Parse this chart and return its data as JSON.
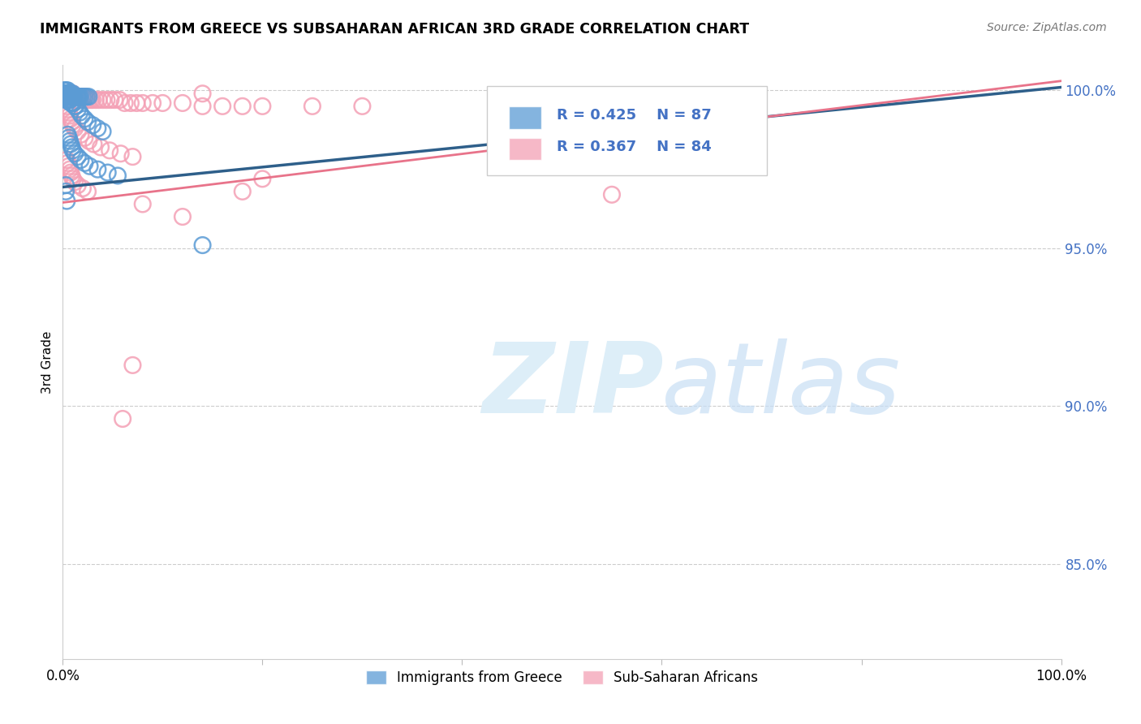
{
  "title": "IMMIGRANTS FROM GREECE VS SUBSAHARAN AFRICAN 3RD GRADE CORRELATION CHART",
  "source": "Source: ZipAtlas.com",
  "ylabel": "3rd Grade",
  "y_ticks": [
    0.85,
    0.9,
    0.95,
    1.0
  ],
  "y_tick_labels": [
    "85.0%",
    "90.0%",
    "95.0%",
    "100.0%"
  ],
  "legend_r_blue": "R = 0.425",
  "legend_n_blue": "N = 87",
  "legend_r_pink": "R = 0.367",
  "legend_n_pink": "N = 84",
  "legend_label_blue": "Immigrants from Greece",
  "legend_label_pink": "Sub-Saharan Africans",
  "blue_color": "#5b9bd5",
  "pink_color": "#f4a0b5",
  "blue_line_color": "#2e5f8a",
  "pink_line_color": "#e8738a",
  "watermark_color": "#ddeef8",
  "blue_x": [
    0.001,
    0.001,
    0.002,
    0.002,
    0.002,
    0.002,
    0.003,
    0.003,
    0.003,
    0.003,
    0.003,
    0.004,
    0.004,
    0.004,
    0.004,
    0.004,
    0.005,
    0.005,
    0.005,
    0.005,
    0.005,
    0.006,
    0.006,
    0.006,
    0.006,
    0.007,
    0.007,
    0.007,
    0.008,
    0.008,
    0.008,
    0.009,
    0.009,
    0.01,
    0.01,
    0.01,
    0.011,
    0.011,
    0.012,
    0.013,
    0.014,
    0.015,
    0.015,
    0.016,
    0.017,
    0.018,
    0.02,
    0.022,
    0.024,
    0.026,
    0.003,
    0.004,
    0.005,
    0.006,
    0.007,
    0.008,
    0.009,
    0.01,
    0.011,
    0.012,
    0.013,
    0.015,
    0.017,
    0.019,
    0.022,
    0.025,
    0.03,
    0.035,
    0.04,
    0.005,
    0.006,
    0.007,
    0.008,
    0.009,
    0.01,
    0.012,
    0.015,
    0.018,
    0.022,
    0.027,
    0.035,
    0.045,
    0.055,
    0.003,
    0.003,
    0.004,
    0.14
  ],
  "blue_y": [
    1.0,
    0.999,
    1.0,
    0.999,
    0.999,
    0.998,
    1.0,
    0.999,
    0.999,
    0.998,
    0.998,
    1.0,
    0.999,
    0.999,
    0.998,
    0.998,
    1.0,
    0.999,
    0.999,
    0.998,
    0.998,
    0.999,
    0.999,
    0.998,
    0.998,
    0.999,
    0.998,
    0.998,
    0.999,
    0.998,
    0.998,
    0.999,
    0.998,
    0.999,
    0.998,
    0.998,
    0.998,
    0.998,
    0.998,
    0.998,
    0.998,
    0.998,
    0.998,
    0.998,
    0.998,
    0.998,
    0.998,
    0.998,
    0.998,
    0.998,
    0.997,
    0.997,
    0.997,
    0.997,
    0.997,
    0.996,
    0.996,
    0.996,
    0.996,
    0.995,
    0.995,
    0.994,
    0.993,
    0.992,
    0.991,
    0.99,
    0.989,
    0.988,
    0.987,
    0.986,
    0.985,
    0.984,
    0.983,
    0.982,
    0.981,
    0.98,
    0.979,
    0.978,
    0.977,
    0.976,
    0.975,
    0.974,
    0.973,
    0.97,
    0.968,
    0.965,
    0.951
  ],
  "pink_x": [
    0.002,
    0.003,
    0.004,
    0.004,
    0.005,
    0.005,
    0.006,
    0.006,
    0.007,
    0.007,
    0.008,
    0.008,
    0.009,
    0.01,
    0.011,
    0.012,
    0.013,
    0.014,
    0.015,
    0.016,
    0.017,
    0.018,
    0.02,
    0.022,
    0.024,
    0.026,
    0.028,
    0.03,
    0.033,
    0.036,
    0.04,
    0.044,
    0.048,
    0.052,
    0.057,
    0.062,
    0.068,
    0.074,
    0.08,
    0.09,
    0.1,
    0.12,
    0.14,
    0.16,
    0.18,
    0.2,
    0.25,
    0.3,
    0.004,
    0.005,
    0.006,
    0.007,
    0.008,
    0.009,
    0.01,
    0.012,
    0.015,
    0.018,
    0.022,
    0.026,
    0.031,
    0.038,
    0.047,
    0.058,
    0.07,
    0.004,
    0.005,
    0.006,
    0.007,
    0.008,
    0.009,
    0.01,
    0.012,
    0.015,
    0.02,
    0.025,
    0.55,
    0.14,
    0.2,
    0.18,
    0.08,
    0.12,
    0.07,
    0.06
  ],
  "pink_y": [
    0.999,
    0.999,
    0.999,
    0.998,
    0.999,
    0.998,
    0.999,
    0.998,
    0.999,
    0.998,
    0.999,
    0.998,
    0.998,
    0.999,
    0.998,
    0.998,
    0.998,
    0.998,
    0.998,
    0.998,
    0.998,
    0.998,
    0.998,
    0.998,
    0.997,
    0.997,
    0.997,
    0.997,
    0.997,
    0.997,
    0.997,
    0.997,
    0.997,
    0.997,
    0.997,
    0.996,
    0.996,
    0.996,
    0.996,
    0.996,
    0.996,
    0.996,
    0.995,
    0.995,
    0.995,
    0.995,
    0.995,
    0.995,
    0.995,
    0.994,
    0.993,
    0.992,
    0.991,
    0.99,
    0.989,
    0.988,
    0.987,
    0.986,
    0.985,
    0.984,
    0.983,
    0.982,
    0.981,
    0.98,
    0.979,
    0.978,
    0.977,
    0.976,
    0.975,
    0.974,
    0.973,
    0.972,
    0.971,
    0.97,
    0.969,
    0.968,
    0.967,
    0.999,
    0.972,
    0.968,
    0.964,
    0.96,
    0.913,
    0.896
  ],
  "blue_trend": [
    0.0,
    1.0,
    0.9694,
    1.001
  ],
  "pink_trend": [
    0.0,
    1.0,
    0.9645,
    1.003
  ]
}
